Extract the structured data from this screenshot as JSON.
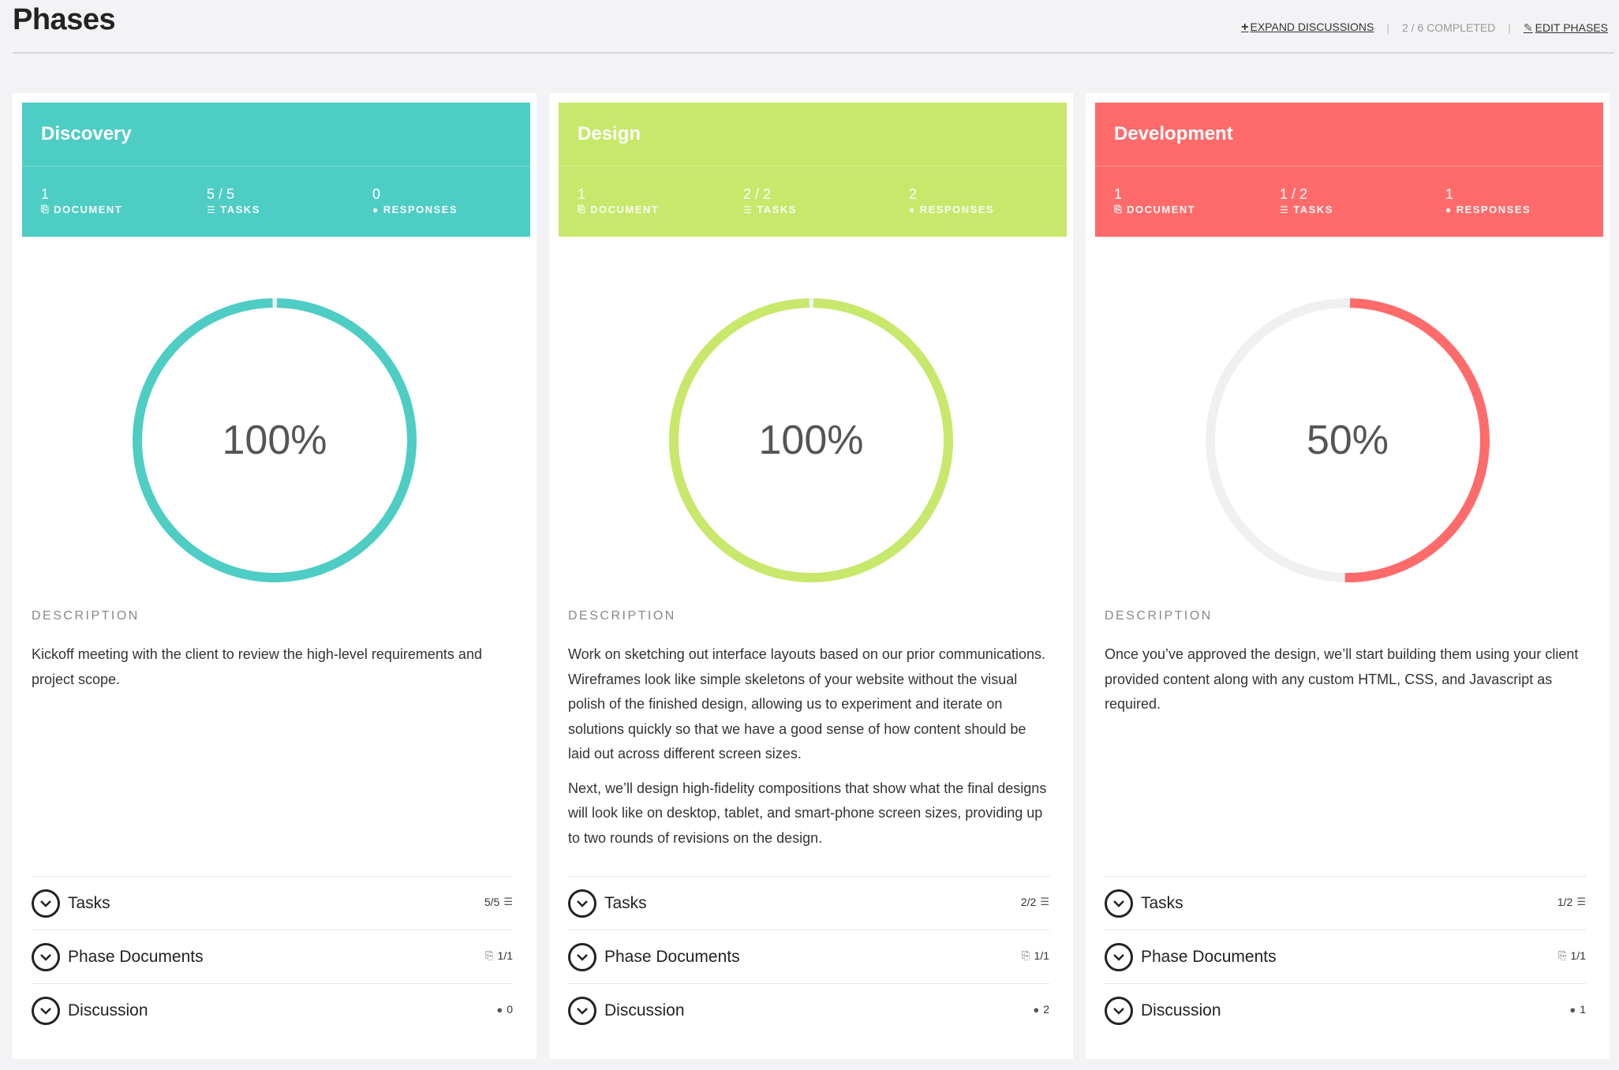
{
  "header": {
    "title": "Phases",
    "expand_label": "EXPAND DISCUSSIONS",
    "completed_label": "2 / 6 COMPLETED",
    "edit_label": "EDIT PHASES"
  },
  "phases": [
    {
      "name": "Discovery",
      "color": "#4ecdc4",
      "documents": "1",
      "documents_label": "DOCUMENT",
      "tasks": "5 / 5",
      "tasks_label": "TASKS",
      "responses": "0",
      "responses_label": "RESPONSES",
      "progress": 100,
      "progress_label": "100%",
      "description_label": "DESCRIPTION",
      "description": [
        "Kickoff meeting with the client to review the high-level requirements and project scope."
      ],
      "rows": {
        "tasks_label": "Tasks",
        "tasks_count": "5/5",
        "docs_label": "Phase Documents",
        "docs_count": "1/1",
        "discussion_label": "Discussion",
        "discussion_count": "0"
      }
    },
    {
      "name": "Design",
      "color": "#c7e86b",
      "documents": "1",
      "documents_label": "DOCUMENT",
      "tasks": "2 / 2",
      "tasks_label": "TASKS",
      "responses": "2",
      "responses_label": "RESPONSES",
      "progress": 100,
      "progress_label": "100%",
      "description_label": "DESCRIPTION",
      "description": [
        "Work on sketching out interface layouts based on our prior communications.  Wireframes look like simple skeletons of your website without the visual polish of the finished design, allowing us to experiment and iterate on solutions quickly so that we have a good sense of how content should be laid out across different screen sizes.",
        "Next, we’ll design high-fidelity compositions that show what the final designs will look like on desktop, tablet, and smart-phone screen sizes, providing up to two rounds of revisions on the design."
      ],
      "rows": {
        "tasks_label": "Tasks",
        "tasks_count": "2/2",
        "docs_label": "Phase Documents",
        "docs_count": "1/1",
        "discussion_label": "Discussion",
        "discussion_count": "2"
      }
    },
    {
      "name": "Development",
      "color": "#ff6b6b",
      "documents": "1",
      "documents_label": "DOCUMENT",
      "tasks": "1 / 2",
      "tasks_label": "TASKS",
      "responses": "1",
      "responses_label": "RESPONSES",
      "progress": 50,
      "progress_label": "50%",
      "description_label": "DESCRIPTION",
      "description": [
        "Once you’ve approved the design, we’ll start building them using your client provided content along with any custom HTML, CSS, and Javascript as required."
      ],
      "rows": {
        "tasks_label": "Tasks",
        "tasks_count": "1/2",
        "docs_label": "Phase Documents",
        "docs_count": "1/1",
        "discussion_label": "Discussion",
        "discussion_count": "1"
      }
    }
  ]
}
